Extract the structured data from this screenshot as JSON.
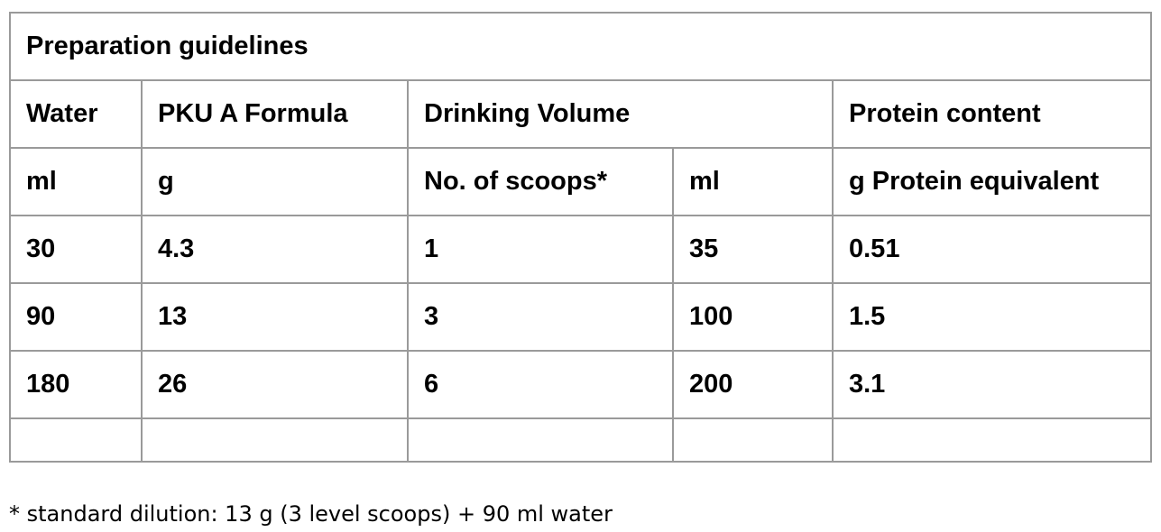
{
  "table": {
    "title": "Preparation guidelines",
    "headers": {
      "water": "Water",
      "formula": "PKU A Formula",
      "drinking_volume": "Drinking Volume",
      "protein": "Protein content"
    },
    "units": {
      "water": "ml",
      "formula": "g",
      "scoops": "No. of scoops*",
      "volume": "ml",
      "protein": "g Protein equivalent"
    },
    "rows": [
      {
        "water": "30",
        "formula": "4.3",
        "scoops": "1",
        "volume": "35",
        "protein": "0.51"
      },
      {
        "water": "90",
        "formula": "13",
        "scoops": "3",
        "volume": "100",
        "protein": "1.5"
      },
      {
        "water": "180",
        "formula": "26",
        "scoops": "6",
        "volume": "200",
        "protein": "3.1"
      }
    ]
  },
  "footnote": "* standard dilution: 13 g (3 level scoops) + 90 ml water"
}
